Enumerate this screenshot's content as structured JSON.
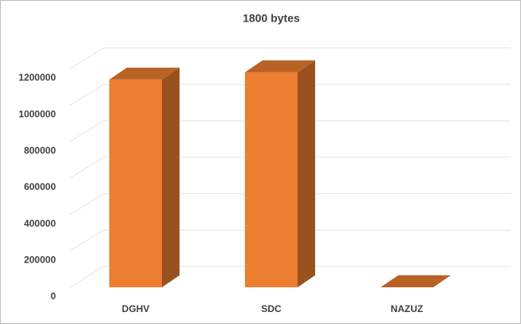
{
  "chart_data": {
    "type": "bar3d",
    "title": "1800 bytes",
    "categories": [
      "DGHV",
      "SDC",
      "NAZUZ"
    ],
    "values": [
      1140000,
      1180000,
      0
    ],
    "color": "#ed7d31",
    "ylim": [
      0,
      1200000
    ],
    "yticks": [
      0,
      200000,
      400000,
      600000,
      800000,
      1000000,
      1200000
    ],
    "grid": true
  }
}
